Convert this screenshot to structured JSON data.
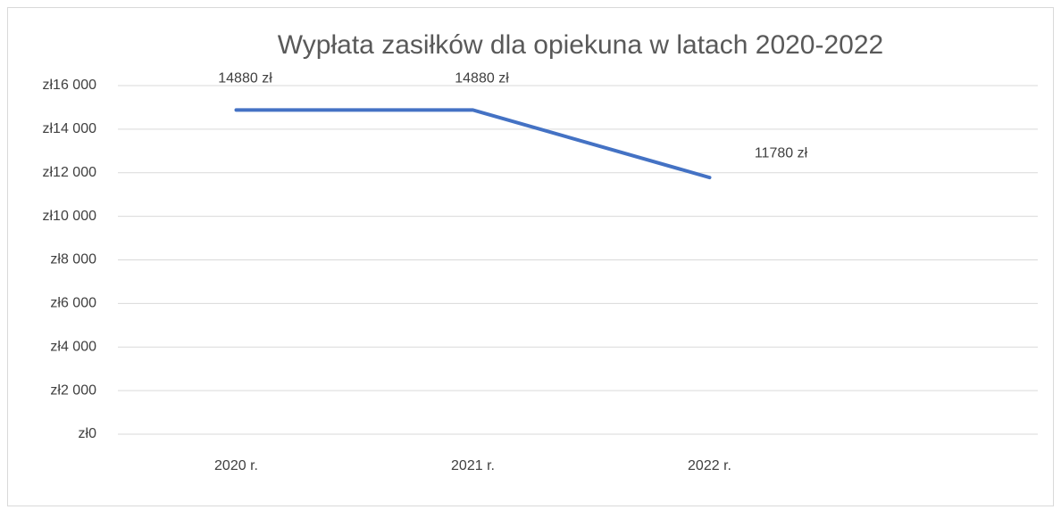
{
  "chart_data": {
    "type": "line",
    "title": "Wypłata zasiłków dla opiekuna w latach 2020-2022",
    "categories": [
      "2020 r.",
      "2021 r.",
      "2022 r.",
      null
    ],
    "series": [
      {
        "name": "Wypłata",
        "color": "#4472c4",
        "values": [
          14880,
          14880,
          11780,
          null
        ],
        "value_labels": [
          "14880 zł",
          "14880 zł",
          "11780 zł",
          null
        ]
      }
    ],
    "ylim": [
      0,
      16000
    ],
    "yticks": [
      {
        "value": 0,
        "label": "zł0"
      },
      {
        "value": 2000,
        "label": "zł2 000"
      },
      {
        "value": 4000,
        "label": "zł4 000"
      },
      {
        "value": 6000,
        "label": "zł6 000"
      },
      {
        "value": 8000,
        "label": "zł8 000"
      },
      {
        "value": 10000,
        "label": "zł10 000"
      },
      {
        "value": 12000,
        "label": "zł12 000"
      },
      {
        "value": 14000,
        "label": "zł14 000"
      },
      {
        "value": 16000,
        "label": "zł16 000"
      }
    ],
    "grid": true
  }
}
